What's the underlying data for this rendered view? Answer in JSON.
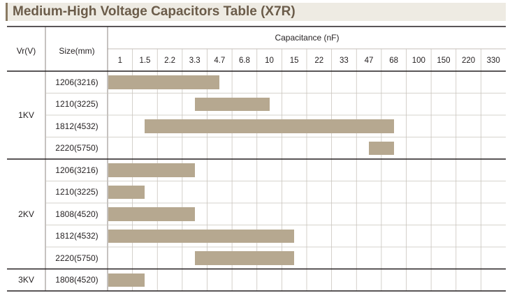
{
  "title": "Medium-High Voltage Capacitors Table (X7R)",
  "headers": {
    "voltage": "Vr(V)",
    "size": "Size(mm)",
    "capacitance": "Capacitance (nF)"
  },
  "colors": {
    "bar": "#b6a890",
    "title_bg": "#eeebe3",
    "title_text": "#6b5c4a",
    "accent": "#8a7a63"
  },
  "chart_data": {
    "type": "table",
    "title": "Medium-High Voltage Capacitors Table (X7R)",
    "xlabel": "Capacitance (nF)",
    "categories": [
      "1",
      "1.5",
      "2.2",
      "3.3",
      "4.7",
      "6.8",
      "10",
      "15",
      "22",
      "33",
      "47",
      "68",
      "100",
      "150",
      "220",
      "330"
    ],
    "groups": [
      {
        "voltage": "1KV",
        "rows": [
          {
            "size": "1206(3216)",
            "min": "1",
            "max": "4.7"
          },
          {
            "size": "1210(3225)",
            "min": "3.3",
            "max": "10"
          },
          {
            "size": "1812(4532)",
            "min": "1.5",
            "max": "68"
          },
          {
            "size": "2220(5750)",
            "min": "47",
            "max": "68"
          }
        ]
      },
      {
        "voltage": "2KV",
        "rows": [
          {
            "size": "1206(3216)",
            "min": "1",
            "max": "3.3"
          },
          {
            "size": "1210(3225)",
            "min": "1",
            "max": "1.5"
          },
          {
            "size": "1808(4520)",
            "min": "1",
            "max": "3.3"
          },
          {
            "size": "1812(4532)",
            "min": "1",
            "max": "15"
          },
          {
            "size": "2220(5750)",
            "min": "3.3",
            "max": "15"
          }
        ]
      },
      {
        "voltage": "3KV",
        "rows": [
          {
            "size": "1808(4520)",
            "min": "1",
            "max": "1.5"
          }
        ]
      }
    ]
  }
}
